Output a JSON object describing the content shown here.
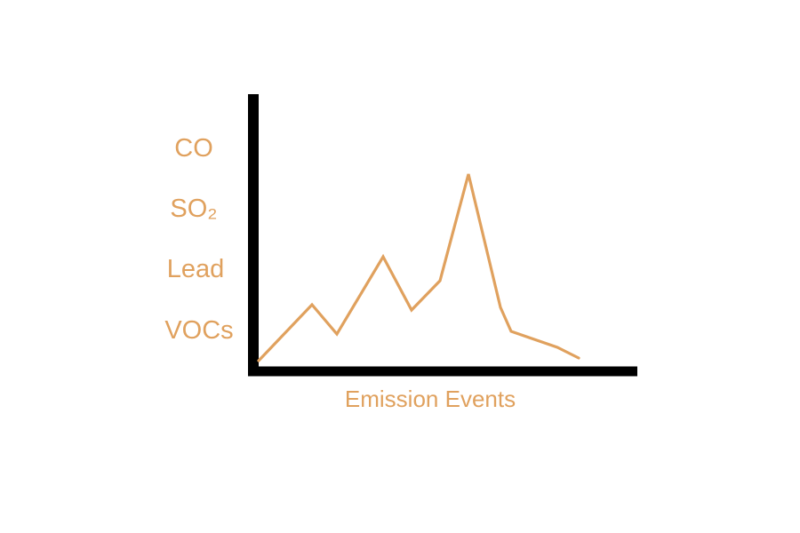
{
  "colors": {
    "accent": "#E0A15E",
    "axis": "#000000",
    "background": "#FFFFFF"
  },
  "chart_data": {
    "type": "line",
    "xlabel": "Emission Events",
    "y_tick_labels": [
      "CO",
      "SO₂",
      "Lead",
      "VOCs"
    ],
    "ylim": [
      0,
      100
    ],
    "xlim": [
      0,
      100
    ],
    "series": [
      {
        "x": [
          0,
          15,
          22,
          35,
          43,
          51,
          59,
          68,
          71,
          84,
          90
        ],
        "y": [
          3,
          24,
          13,
          42,
          22,
          33,
          73,
          23,
          14,
          8,
          4
        ]
      }
    ]
  }
}
